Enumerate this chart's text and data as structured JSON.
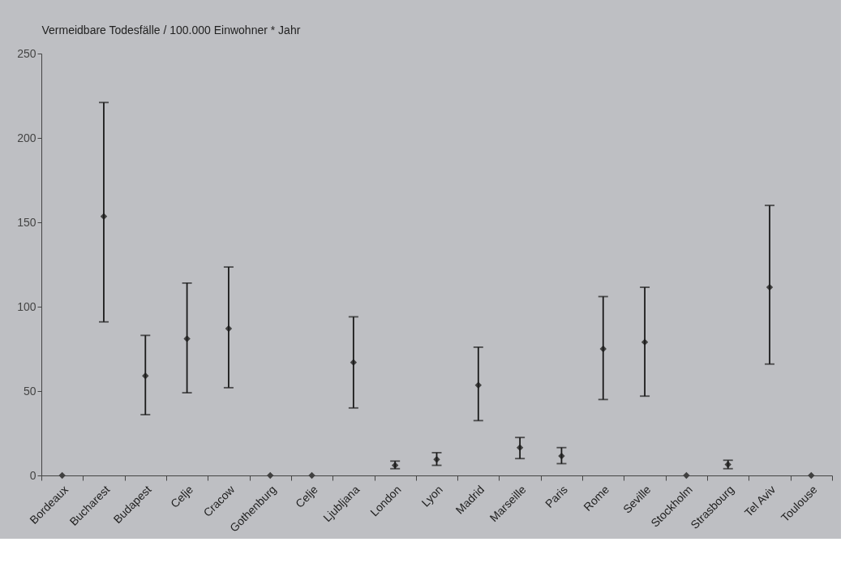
{
  "chart_data": {
    "type": "scatter",
    "ylabel": "Vermeidbare Todesfälle / 100.000 Einwohner * Jahr",
    "categories": [
      "Bordeaux",
      "Bucharest",
      "Budapest",
      "Celje",
      "Cracow",
      "Gothenburg",
      "Celje",
      "Ljubljana",
      "London",
      "Lyon",
      "Madrid",
      "Marseille",
      "Paris",
      "Rome",
      "Seville",
      "Stockholm",
      "Strasbourg",
      "Tel Aviv",
      "Toulouse"
    ],
    "series": [
      {
        "color": "#404040",
        "values": [
          0,
          153.5,
          59,
          81,
          87,
          0,
          0,
          67,
          6,
          9.5,
          53.5,
          16.5,
          11.5,
          75,
          79,
          0,
          6.5,
          111.5,
          0
        ],
        "errors": [
          null,
          [
            91,
            221
          ],
          [
            36,
            83
          ],
          [
            49,
            114
          ],
          [
            52,
            123.5
          ],
          null,
          null,
          [
            40,
            94
          ],
          [
            4,
            8.5
          ],
          [
            6,
            13.5
          ],
          [
            32.5,
            76
          ],
          [
            10,
            22.5
          ],
          [
            7,
            16.5
          ],
          [
            45,
            106
          ],
          [
            47,
            111.5
          ],
          null,
          [
            4,
            9
          ],
          [
            66,
            160
          ],
          null
        ]
      }
    ],
    "ylim": [
      0,
      250
    ],
    "yticks": [
      0,
      50,
      100,
      150,
      200,
      250
    ],
    "marker": "diamond",
    "grid": false
  }
}
